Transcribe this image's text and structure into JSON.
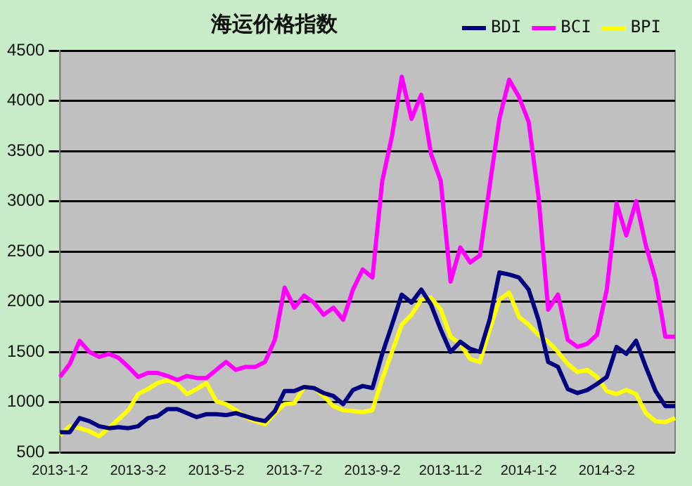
{
  "chart_data": {
    "type": "line",
    "title": "海运价格指数",
    "categories": [
      "2013-1-2",
      null,
      null,
      null,
      null,
      null,
      null,
      null,
      "2013-3-2",
      null,
      null,
      null,
      null,
      null,
      null,
      null,
      "2013-5-2",
      null,
      null,
      null,
      null,
      null,
      null,
      null,
      "2013-7-2",
      null,
      null,
      null,
      null,
      null,
      null,
      null,
      "2013-9-2",
      null,
      null,
      null,
      null,
      null,
      null,
      null,
      "2013-11-2",
      null,
      null,
      null,
      null,
      null,
      null,
      null,
      "2014-1-2",
      null,
      null,
      null,
      null,
      null,
      null,
      null,
      "2014-3-2",
      null,
      null,
      null,
      null,
      null,
      null,
      null
    ],
    "series": [
      {
        "name": "BDI",
        "color": "#000080",
        "values": [
          700,
          700,
          840,
          810,
          760,
          740,
          750,
          740,
          760,
          840,
          860,
          930,
          930,
          890,
          850,
          880,
          880,
          870,
          890,
          860,
          830,
          810,
          910,
          1110,
          1110,
          1150,
          1140,
          1090,
          1060,
          980,
          1120,
          1160,
          1140,
          1480,
          1770,
          2070,
          1990,
          2120,
          1970,
          1720,
          1500,
          1600,
          1530,
          1500,
          1820,
          2290,
          2270,
          2240,
          2120,
          1820,
          1400,
          1350,
          1130,
          1090,
          1120,
          1180,
          1250,
          1550,
          1480,
          1610,
          1350,
          1110,
          960,
          960
        ]
      },
      {
        "name": "BCI",
        "color": "#ff00ff",
        "values": [
          1250,
          1380,
          1610,
          1500,
          1450,
          1480,
          1440,
          1350,
          1250,
          1290,
          1290,
          1260,
          1220,
          1260,
          1240,
          1240,
          1320,
          1400,
          1320,
          1350,
          1350,
          1400,
          1620,
          2140,
          1940,
          2060,
          1990,
          1870,
          1940,
          1820,
          2120,
          2320,
          2240,
          3200,
          3650,
          4240,
          3820,
          4060,
          3470,
          3200,
          2200,
          2540,
          2390,
          2460,
          3150,
          3820,
          4210,
          4040,
          3790,
          3050,
          1920,
          2070,
          1620,
          1550,
          1580,
          1670,
          2120,
          2980,
          2660,
          3000,
          2560,
          2220,
          1650,
          1650
        ]
      },
      {
        "name": "BPI",
        "color": "#ffff00",
        "values": [
          670,
          760,
          740,
          710,
          660,
          740,
          830,
          920,
          1080,
          1130,
          1190,
          1220,
          1180,
          1080,
          1130,
          1190,
          1010,
          980,
          920,
          850,
          810,
          780,
          890,
          980,
          990,
          1150,
          1140,
          1060,
          960,
          920,
          910,
          900,
          920,
          1230,
          1500,
          1770,
          1870,
          2020,
          2040,
          1920,
          1650,
          1580,
          1430,
          1400,
          1720,
          2020,
          2090,
          1850,
          1770,
          1670,
          1600,
          1500,
          1380,
          1300,
          1320,
          1250,
          1110,
          1080,
          1120,
          1080,
          890,
          810,
          800,
          840
        ]
      }
    ],
    "ylim": [
      500,
      4500
    ],
    "yticks": [
      500,
      1000,
      1500,
      2000,
      2500,
      3000,
      3500,
      4000,
      4500
    ],
    "grid": "y",
    "legend": "top right",
    "marker": "none",
    "line_style": "solid"
  }
}
